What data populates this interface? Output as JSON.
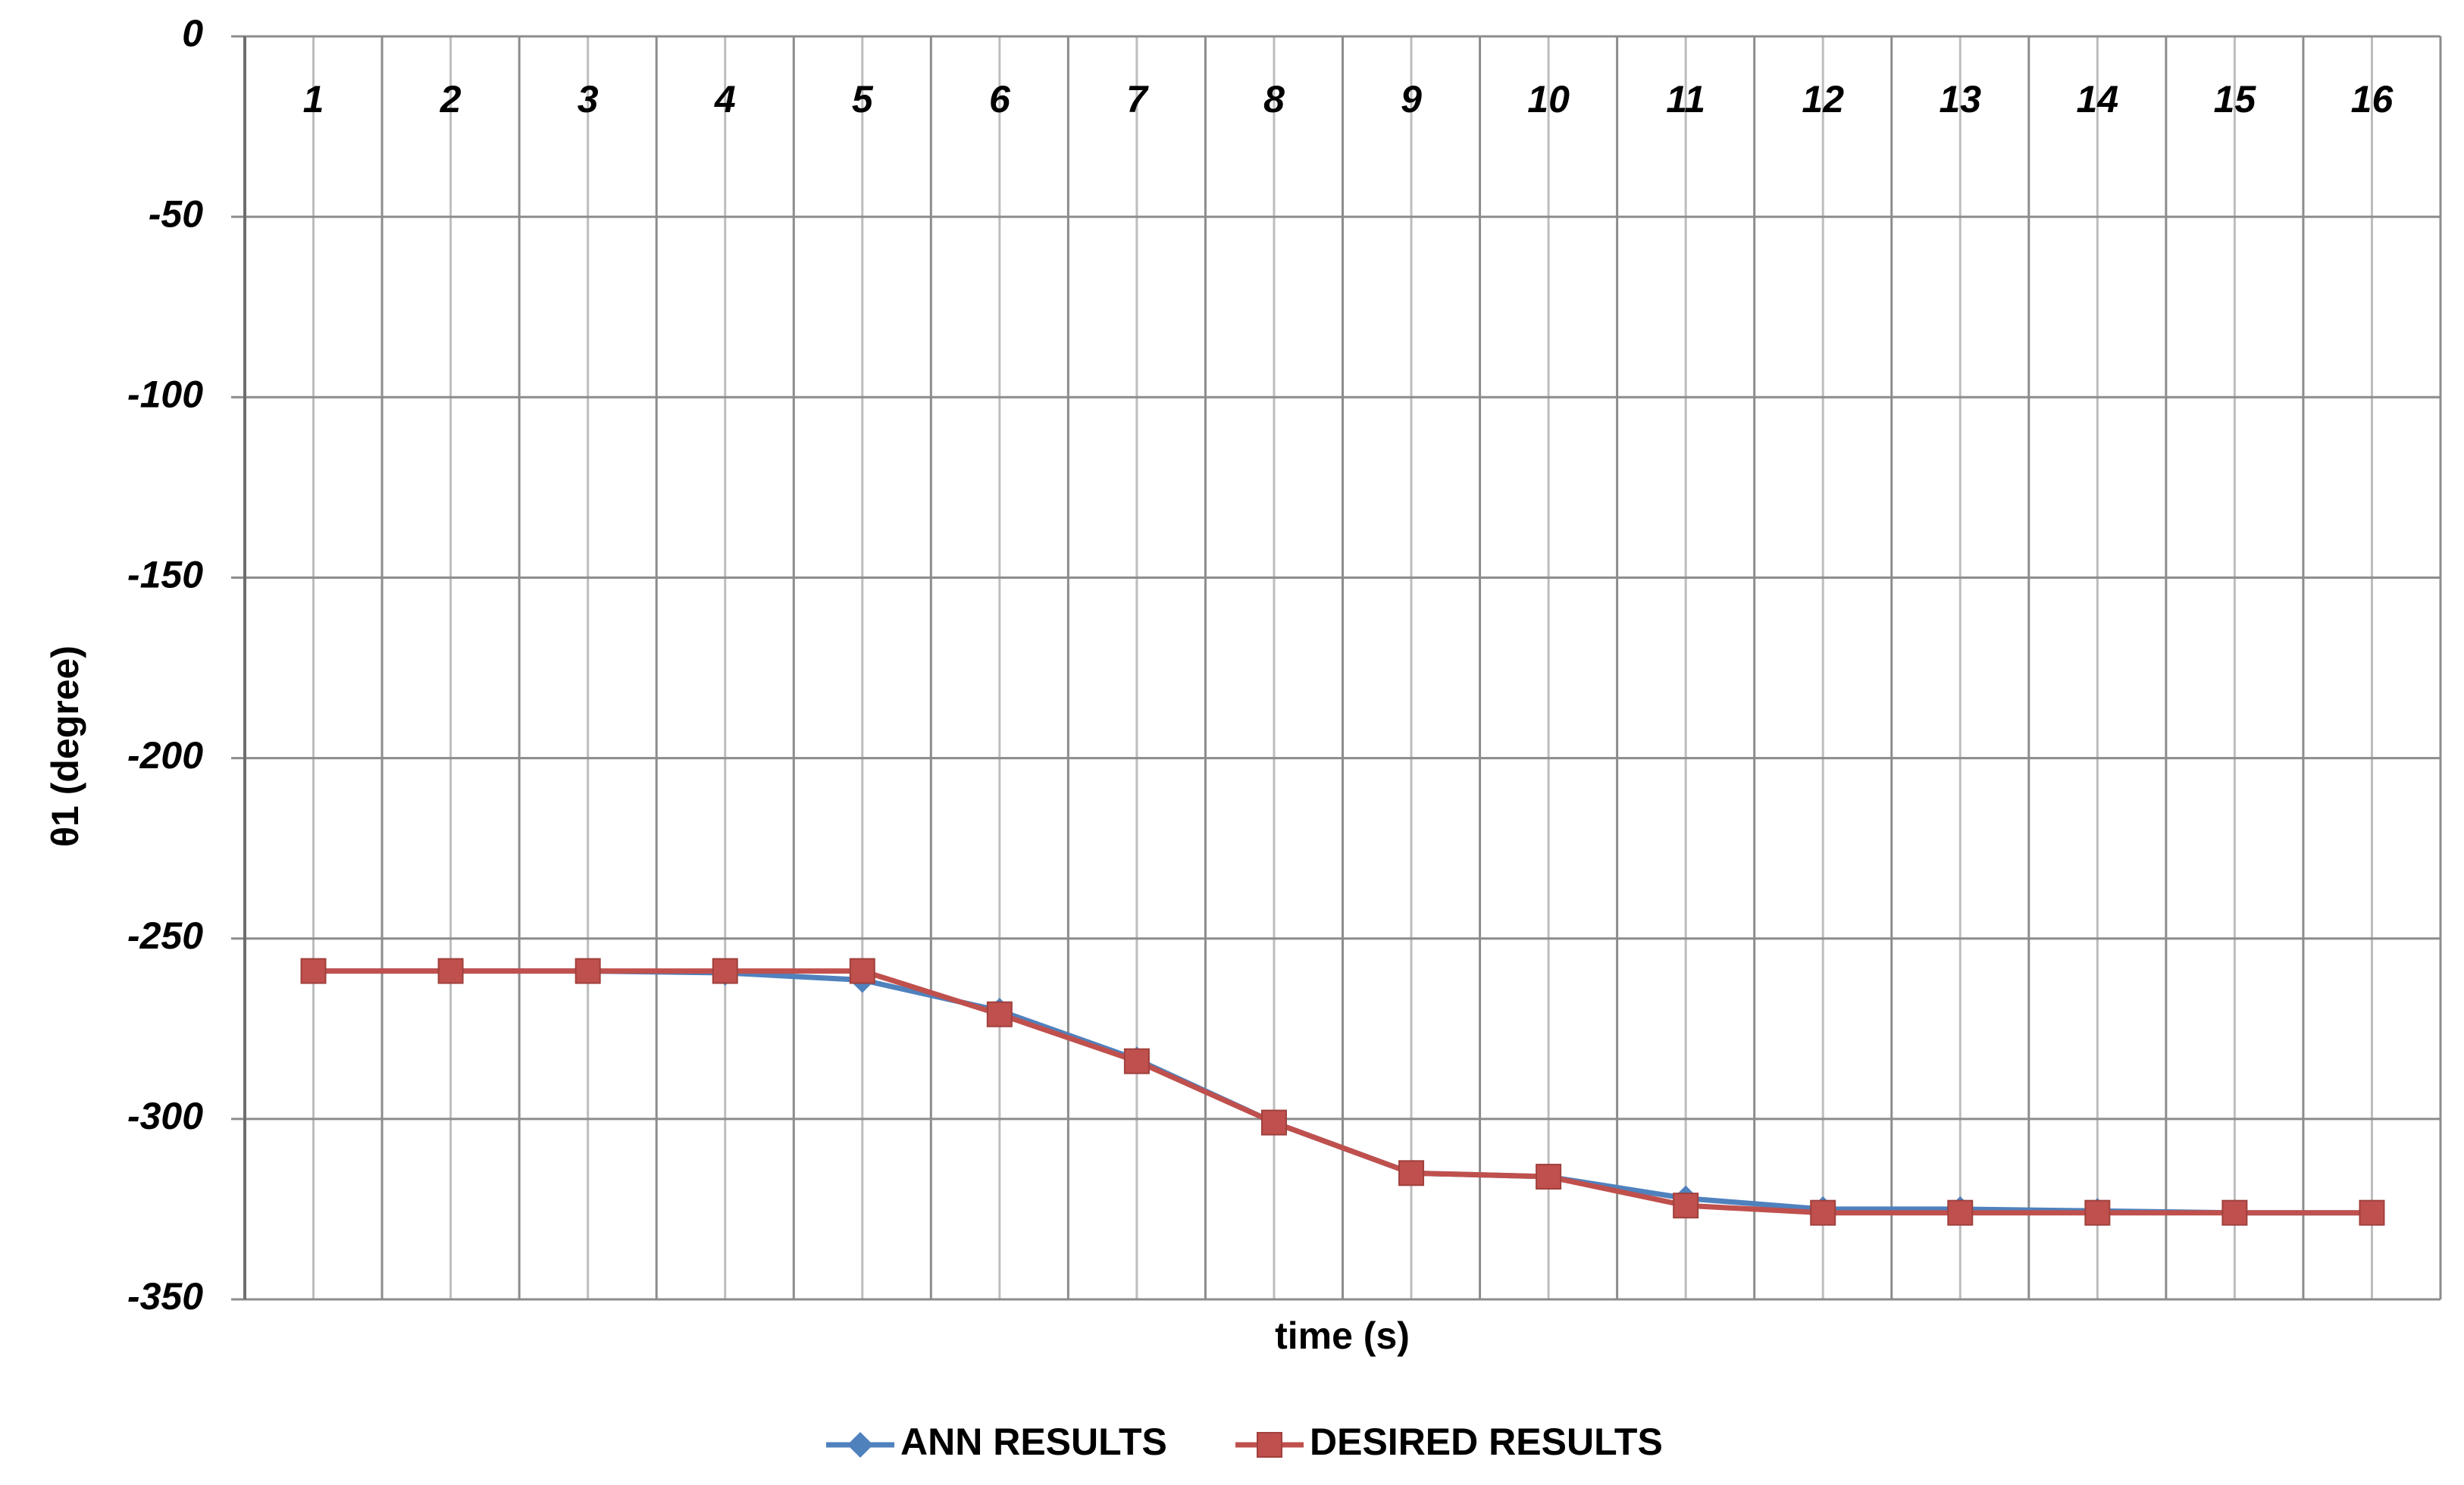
{
  "chart_data": {
    "type": "line",
    "y_label": "θ1 (degree)",
    "x_label": "time (s)",
    "categories": [
      "1",
      "2",
      "3",
      "4",
      "5",
      "6",
      "7",
      "8",
      "9",
      "10",
      "11",
      "12",
      "13",
      "14",
      "15",
      "16"
    ],
    "series": [
      {
        "name": "ANN RESULTS",
        "color": "#4f81bd",
        "marker": "diamond",
        "values": [
          -259,
          -259,
          -259,
          -259.5,
          -261.5,
          -270,
          -283.5,
          -301,
          -315,
          -316,
          -322,
          -325,
          -325,
          -325.5,
          -326,
          -326
        ]
      },
      {
        "name": "DESIRED RESULTS",
        "color": "#c0504d",
        "marker": "square",
        "values": [
          -259,
          -259,
          -259,
          -259,
          -259,
          -271,
          -284,
          -301,
          -315,
          -316,
          -324,
          -326,
          -326,
          -326,
          -326,
          -326
        ]
      }
    ],
    "ylim": [
      -350,
      0
    ],
    "yticks": [
      -350,
      -300,
      -250,
      -200,
      -150,
      -100,
      -50,
      0
    ],
    "grid": true
  }
}
